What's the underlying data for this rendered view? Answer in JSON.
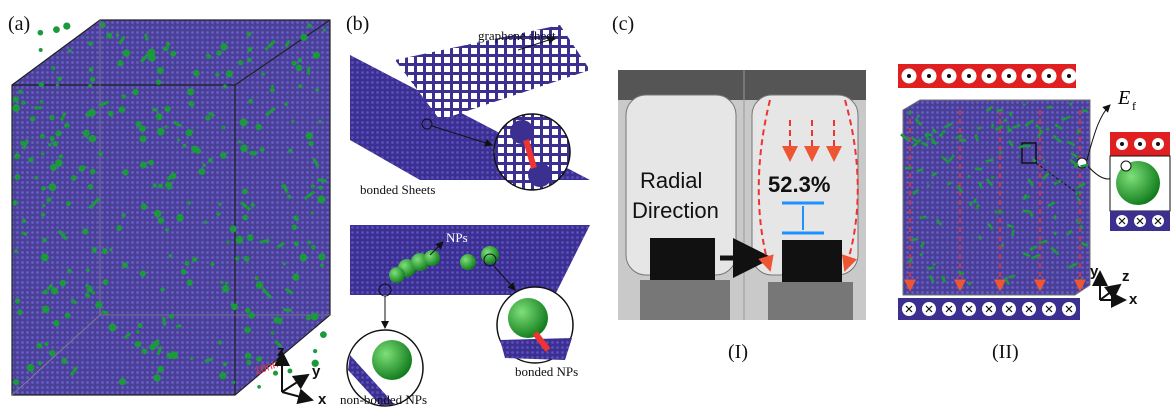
{
  "panel_a": {
    "label": "(a)",
    "scale_bar": "10nm",
    "axes": [
      "z",
      "y",
      "x"
    ]
  },
  "panel_b": {
    "label": "(b)",
    "graphene_sheet": "graphene sheet",
    "bonded_sheets": "bonded Sheets",
    "nps": "NPs",
    "bonded_nps": "bonded NPs",
    "non_bonded_nps": "non-bonded NPs"
  },
  "panel_c": {
    "label": "(c)",
    "photo_text": [
      "Radial",
      "Direction"
    ],
    "percent": "52.3%",
    "sub_labels": [
      "(I)",
      "(II)"
    ],
    "field": "E",
    "field_sub": "f",
    "axes": [
      "y",
      "z",
      "x"
    ]
  }
}
